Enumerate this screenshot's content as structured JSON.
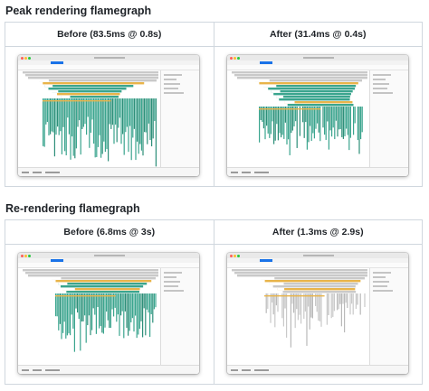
{
  "sections": [
    {
      "title": "Peak rendering flamegraph",
      "columns": [
        {
          "label": "Before (83.5ms @ 0.8s)",
          "variant": "peak-before"
        },
        {
          "label": "After (31.4ms @ 0.4s)",
          "variant": "peak-after"
        }
      ]
    },
    {
      "title": "Re-rendering flamegraph",
      "columns": [
        {
          "label": "Before (6.8ms @ 3s)",
          "variant": "rerender-before"
        },
        {
          "label": "After (1.3ms @ 2.9s)",
          "variant": "rerender-after"
        }
      ]
    }
  ],
  "colors": {
    "teal": "#3aa58e",
    "teal_dark": "#2d8f79",
    "gray_bar": "#c9c9c9",
    "yellow_bar": "#e8b44a",
    "close_dot": "#fd5f57",
    "min_dot": "#febc2e",
    "max_dot": "#28c840",
    "border": "#d0d7de"
  }
}
